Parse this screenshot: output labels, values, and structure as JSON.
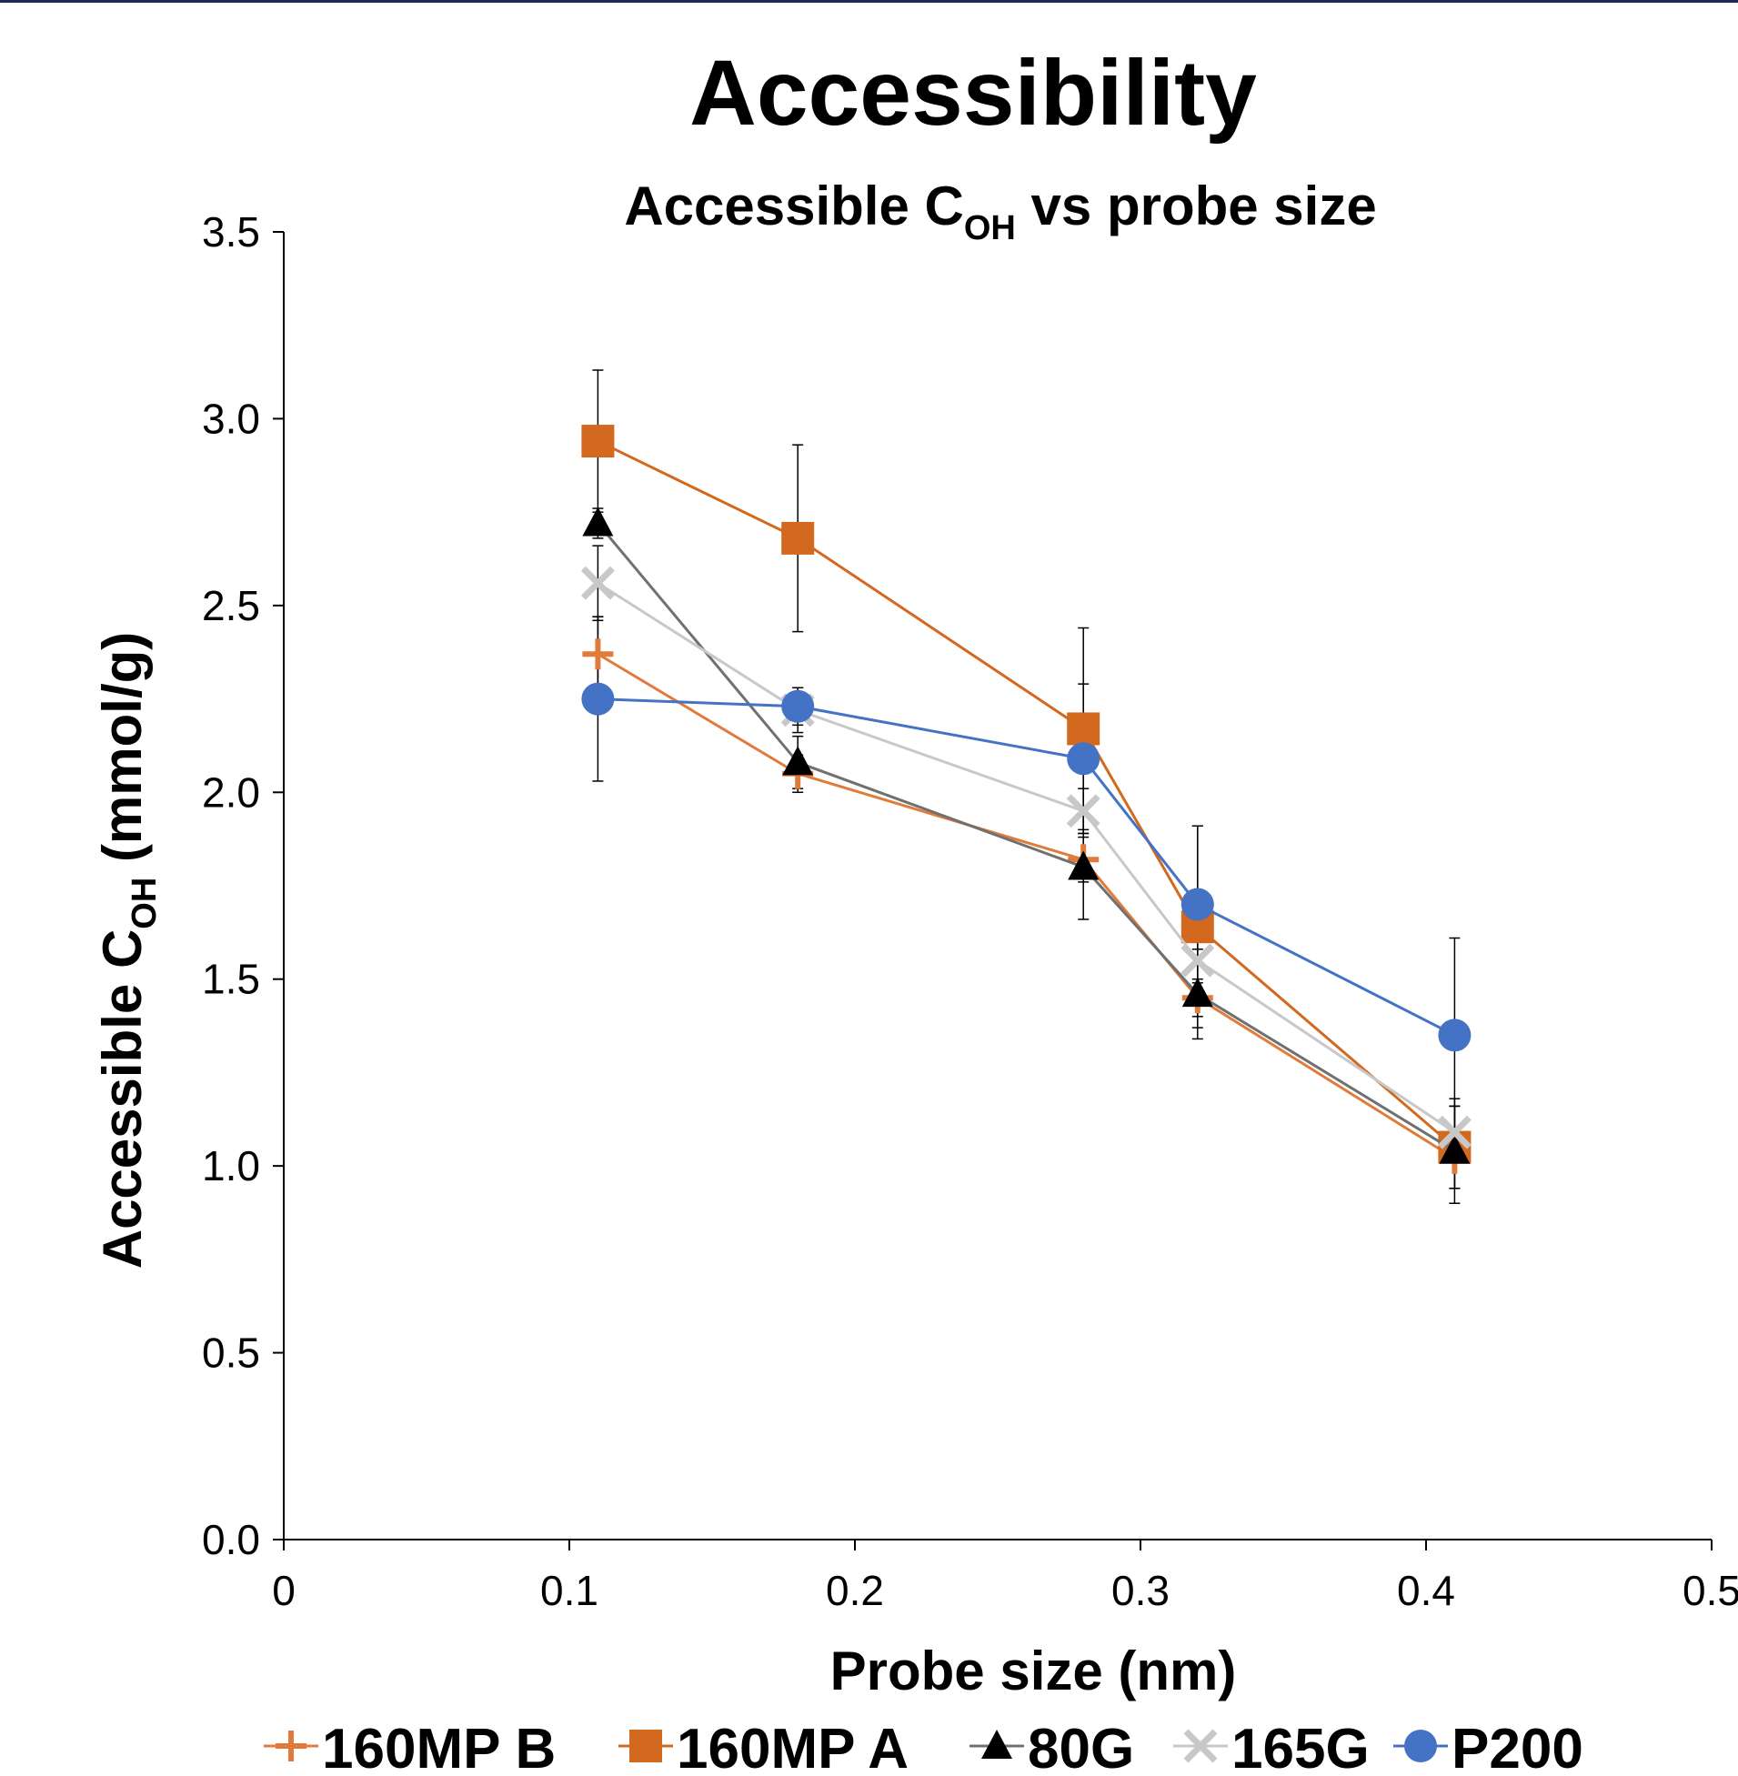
{
  "page": {
    "title": "Accessibility"
  },
  "colors": {
    "orange": "#e07b39",
    "orange_dark": "#d2691e",
    "gray_line": "#707070",
    "light_gray": "#c8c8c8",
    "blue": "#4472c4",
    "axis": "#000000"
  },
  "chart_data": {
    "type": "line",
    "title_main": "Accessible C",
    "title_sub": "OH",
    "title_rest": " vs probe size",
    "xlabel": "Probe size (nm)",
    "ylabel_main": "Accessible C",
    "ylabel_sub": "OH",
    "ylabel_rest": " (mmol/g)",
    "xlim": [
      0,
      0.5
    ],
    "ylim": [
      0,
      3.5
    ],
    "xticks": [
      "0",
      "0.1",
      "0.2",
      "0.3",
      "0.4",
      "0.5"
    ],
    "yticks": [
      "0.0",
      "0.5",
      "1.0",
      "1.5",
      "2.0",
      "2.5",
      "3.0",
      "3.5"
    ],
    "grid": false,
    "legend_position": "bottom",
    "x": [
      0.11,
      0.18,
      0.28,
      0.32,
      0.41
    ],
    "series": [
      {
        "name": "160MP B",
        "marker": "plus",
        "color": "#e07b39",
        "values": [
          2.37,
          2.05,
          1.82,
          1.45,
          1.02
        ],
        "errors": [
          0.1,
          0.05,
          0.06,
          0.05,
          0.08
        ]
      },
      {
        "name": "160MP A",
        "marker": "square",
        "color": "#d2691e",
        "values": [
          2.94,
          2.68,
          2.17,
          1.64,
          1.05
        ],
        "errors": [
          0.19,
          0.25,
          0.27,
          0.27,
          0.11
        ]
      },
      {
        "name": "80G",
        "marker": "triangle",
        "color": "#707070",
        "values": [
          2.72,
          2.08,
          1.8,
          1.46,
          1.04
        ],
        "errors": [
          0.04,
          0.07,
          0.14,
          0.12,
          0.14
        ]
      },
      {
        "name": "165G",
        "marker": "cross",
        "color": "#c8c8c8",
        "values": [
          2.56,
          2.22,
          1.95,
          1.55,
          1.09
        ],
        "errors": [
          0.1,
          0.06,
          0.06,
          0.1,
          0.07
        ]
      },
      {
        "name": "P200",
        "marker": "circle",
        "color": "#4472c4",
        "values": [
          2.25,
          2.23,
          2.09,
          1.7,
          1.35
        ],
        "errors": [
          0.22,
          0.05,
          0.2,
          0.21,
          0.26
        ]
      }
    ]
  }
}
